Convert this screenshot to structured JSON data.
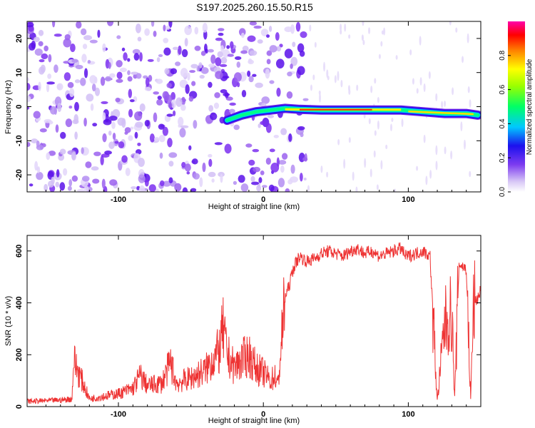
{
  "title": "S197.2025.260.15.50.R15",
  "chart_data": [
    {
      "type": "heatmap",
      "xlabel": "Height of straight line (km)",
      "ylabel": "Frequency (Hz)",
      "xlim": [
        -163,
        150
      ],
      "ylim": [
        -25,
        25
      ],
      "xticks": [
        -100,
        0,
        100
      ],
      "yticks": [
        -20,
        -10,
        0,
        10,
        20
      ],
      "colorbar": {
        "label": "Normalized spectral amplitude",
        "range": [
          0,
          1
        ],
        "ticks": [
          "0.0",
          "0.2",
          "0.4",
          "0.6",
          "0.8"
        ]
      },
      "ridge": {
        "description_points_x": [
          -25,
          -15,
          -5,
          5,
          15,
          25,
          40,
          60,
          80,
          95,
          110,
          125,
          140,
          148
        ],
        "description_points_y": [
          -4,
          -2.5,
          -1.5,
          -1,
          -0.5,
          -0.8,
          -1,
          -1,
          -1,
          -1,
          -1.5,
          -2,
          -2,
          -2.5
        ]
      }
    },
    {
      "type": "line",
      "xlabel": "Height of straight line (km)",
      "ylabel": "SNR (10 * v/v)",
      "xlim": [
        -163,
        150
      ],
      "ylim": [
        0,
        660
      ],
      "xticks": [
        -100,
        0,
        100
      ],
      "yticks": [
        0,
        200,
        400,
        600
      ],
      "series": [
        {
          "name": "SNR",
          "color": "#ee3333",
          "x": [
            -163,
            -140,
            -132,
            -131,
            -120,
            -100,
            -90,
            -85,
            -80,
            -70,
            -64,
            -60,
            -50,
            -40,
            -30,
            -28,
            -25,
            -20,
            -15,
            -10,
            -5,
            0,
            5,
            8,
            10,
            14,
            15,
            18,
            20,
            22,
            25,
            30,
            35,
            40,
            45,
            50,
            55,
            60,
            65,
            70,
            75,
            80,
            85,
            90,
            95,
            98,
            100,
            105,
            110,
            115,
            120,
            125,
            130,
            132,
            135,
            140,
            143,
            145,
            148,
            150
          ],
          "y": [
            20,
            25,
            30,
            180,
            30,
            50,
            70,
            120,
            80,
            90,
            170,
            90,
            110,
            140,
            220,
            300,
            200,
            150,
            180,
            200,
            150,
            130,
            100,
            120,
            80,
            350,
            420,
            470,
            520,
            550,
            580,
            560,
            570,
            590,
            600,
            590,
            580,
            600,
            610,
            590,
            600,
            580,
            590,
            600,
            610,
            580,
            580,
            590,
            600,
            580,
            20,
            320,
            360,
            30,
            550,
            530,
            30,
            390,
            420,
            450
          ]
        }
      ]
    }
  ]
}
